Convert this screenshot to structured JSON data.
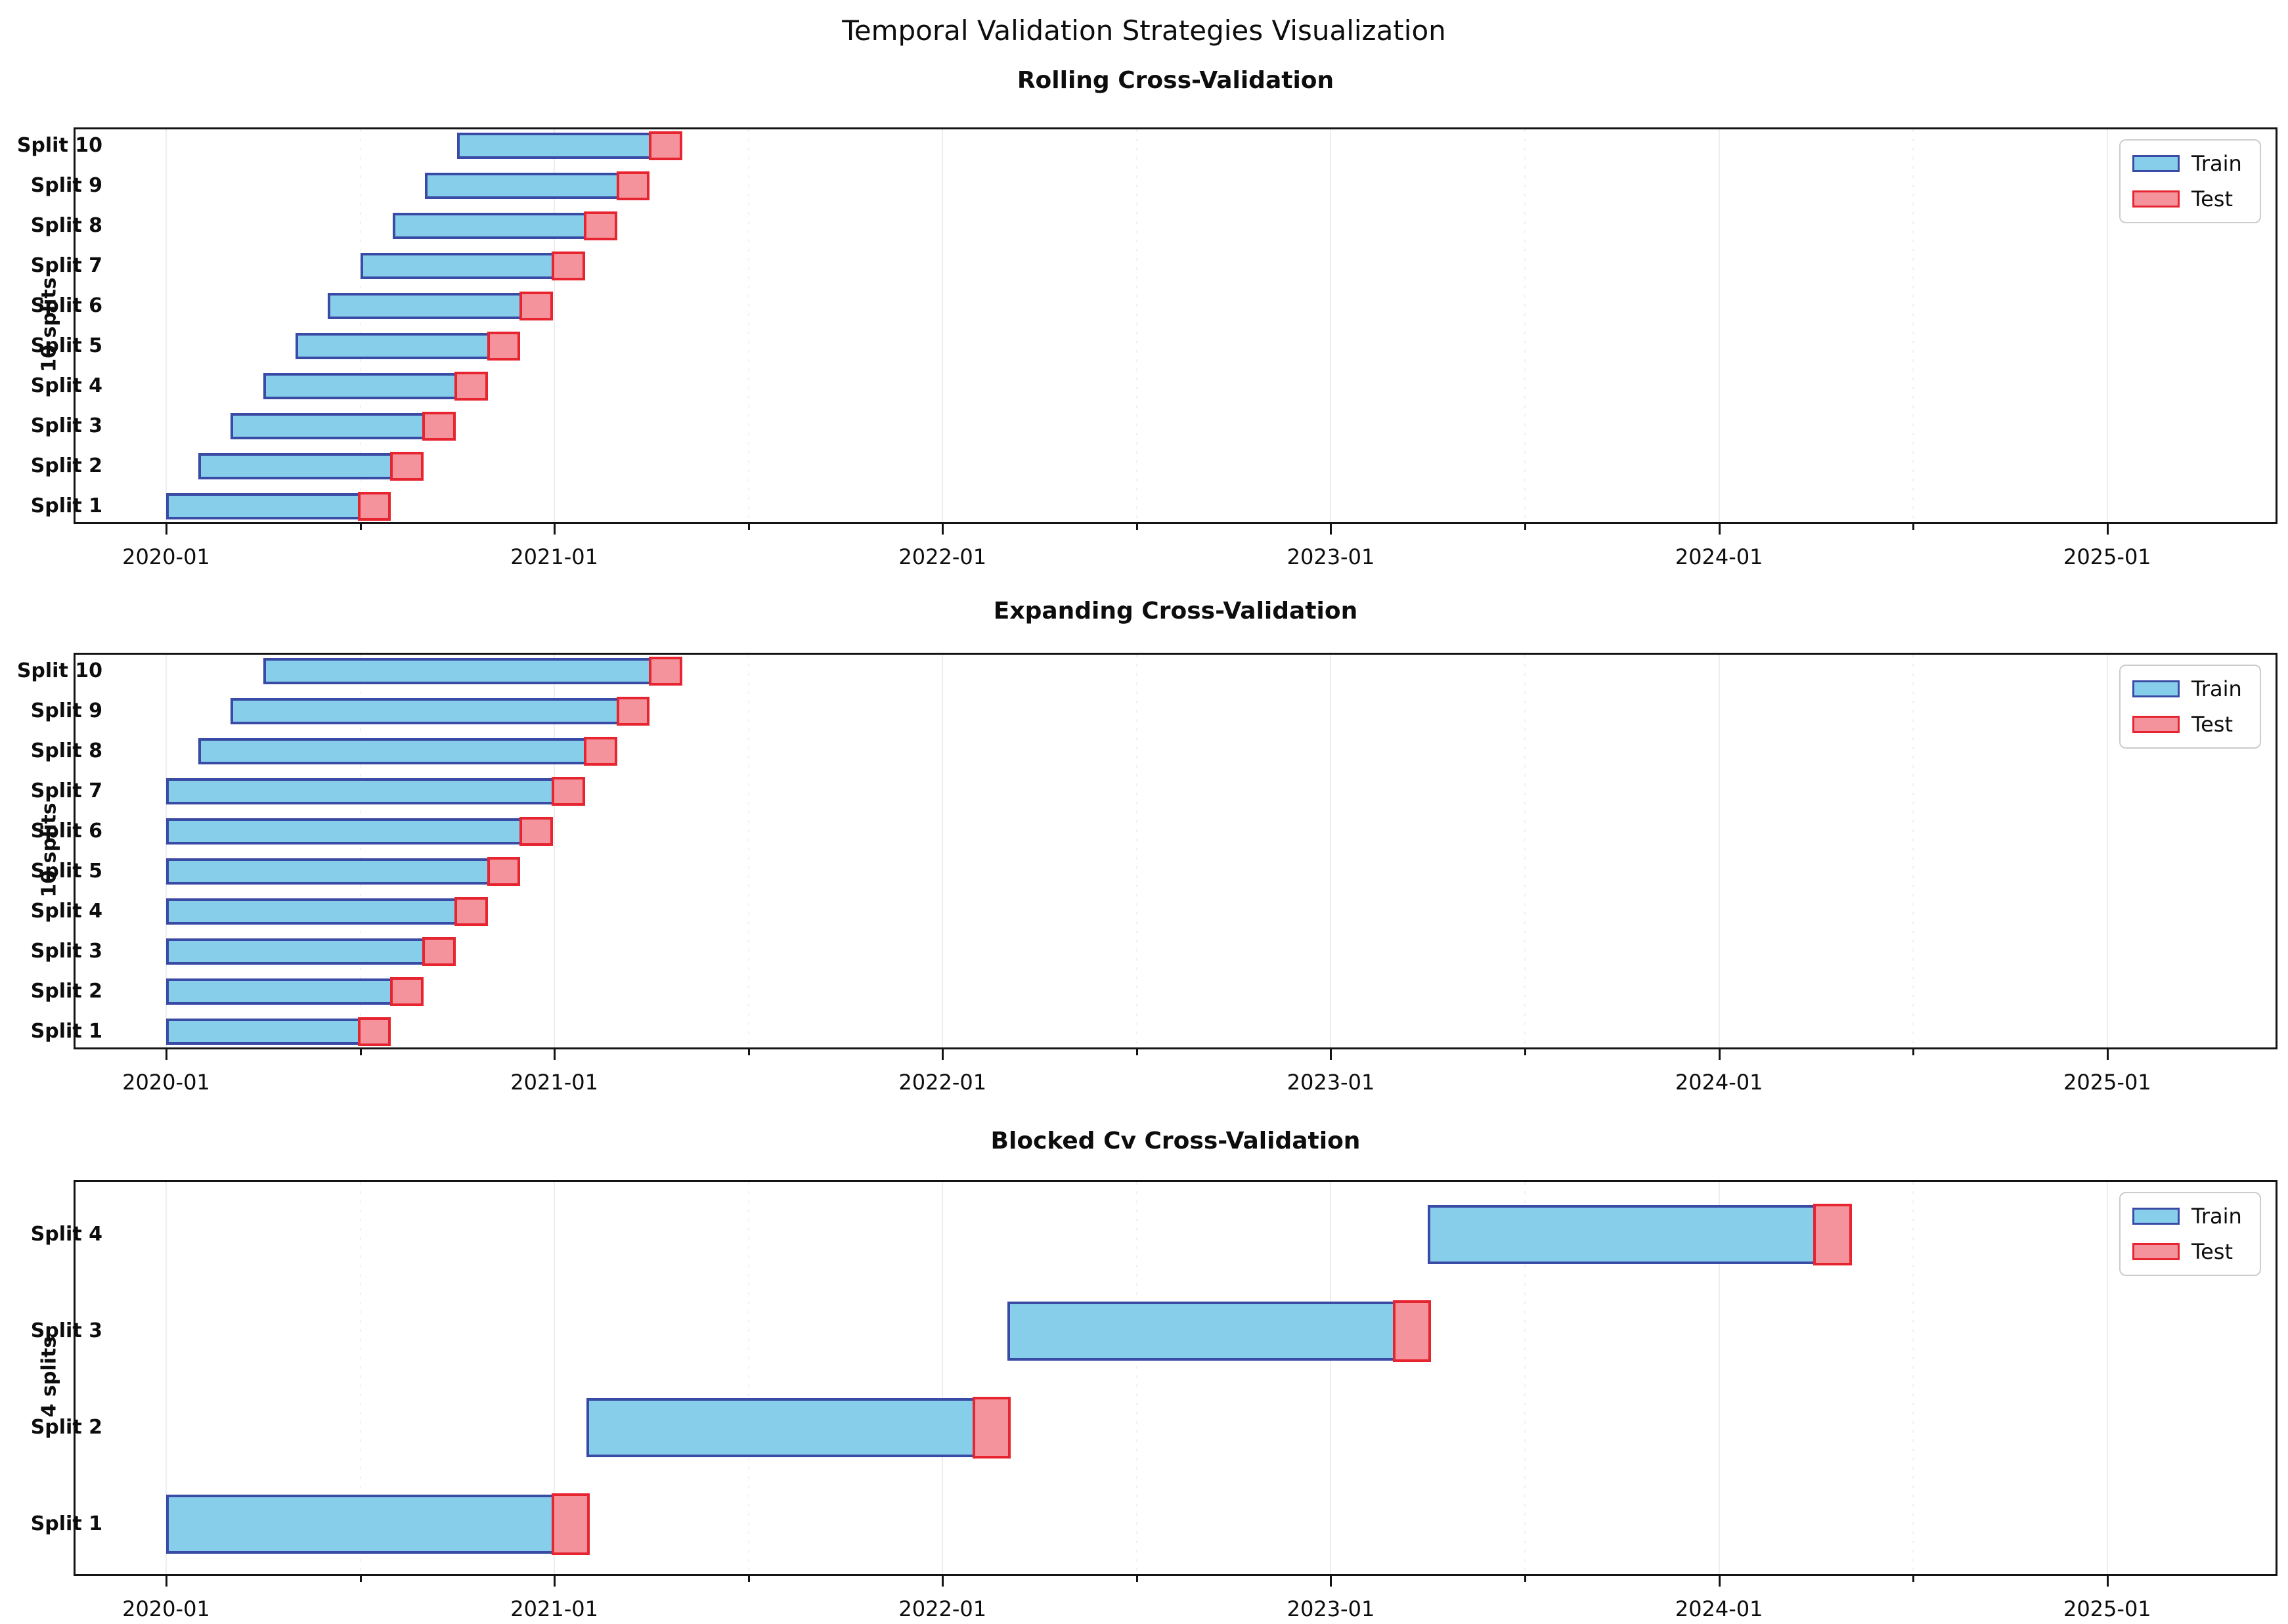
{
  "suptitle": "Temporal Validation Strategies Visualization",
  "colors": {
    "train_fill": "#87CEEB",
    "train_edge": "#3A4BA5",
    "test_fill": "#F4939B",
    "test_edge": "#E62531",
    "spine": "#141414"
  },
  "legend": {
    "items": [
      {
        "key": "train",
        "label": "Train"
      },
      {
        "key": "test",
        "label": "Test"
      }
    ],
    "position": "upper right"
  },
  "x_axis": {
    "range_months_since_2020_01": [
      -2.8,
      65.2
    ],
    "major_ticks": [
      {
        "m": 0,
        "label": "2020-01"
      },
      {
        "m": 12,
        "label": "2021-01"
      },
      {
        "m": 24,
        "label": "2022-01"
      },
      {
        "m": 36,
        "label": "2023-01"
      },
      {
        "m": 48,
        "label": "2024-01"
      },
      {
        "m": 60,
        "label": "2025-01"
      }
    ],
    "minor_tick_months": [
      6,
      18,
      30,
      42,
      54
    ],
    "grid": true
  },
  "chart_data": [
    {
      "type": "gantt",
      "title": "Rolling Cross-Validation",
      "ylabel": "10 splits",
      "legend": [
        "Train",
        "Test"
      ],
      "row_order_top_to_bottom": [
        "Split 10",
        "Split 9",
        "Split 8",
        "Split 7",
        "Split 6",
        "Split 5",
        "Split 4",
        "Split 3",
        "Split 2",
        "Split 1"
      ],
      "splits": [
        {
          "label": "Split 1",
          "train": [
            "2020-01",
            "2020-07"
          ],
          "test": [
            "2020-07",
            "2020-08"
          ],
          "train_m": [
            0,
            6
          ],
          "test_m": [
            6,
            6.95
          ]
        },
        {
          "label": "Split 2",
          "train": [
            "2020-02",
            "2020-08"
          ],
          "test": [
            "2020-08",
            "2020-09"
          ],
          "train_m": [
            1,
            7
          ],
          "test_m": [
            7,
            7.95
          ]
        },
        {
          "label": "Split 3",
          "train": [
            "2020-03",
            "2020-09"
          ],
          "test": [
            "2020-09",
            "2020-10"
          ],
          "train_m": [
            2,
            8
          ],
          "test_m": [
            8,
            8.95
          ]
        },
        {
          "label": "Split 4",
          "train": [
            "2020-04",
            "2020-10"
          ],
          "test": [
            "2020-10",
            "2020-11"
          ],
          "train_m": [
            3,
            9
          ],
          "test_m": [
            9,
            9.95
          ]
        },
        {
          "label": "Split 5",
          "train": [
            "2020-05",
            "2020-11"
          ],
          "test": [
            "2020-11",
            "2020-12"
          ],
          "train_m": [
            4,
            10
          ],
          "test_m": [
            10,
            10.95
          ]
        },
        {
          "label": "Split 6",
          "train": [
            "2020-06",
            "2020-12"
          ],
          "test": [
            "2020-12",
            "2021-01"
          ],
          "train_m": [
            5,
            11
          ],
          "test_m": [
            11,
            11.95
          ]
        },
        {
          "label": "Split 7",
          "train": [
            "2020-07",
            "2021-01"
          ],
          "test": [
            "2021-01",
            "2021-02"
          ],
          "train_m": [
            6,
            12
          ],
          "test_m": [
            12,
            12.95
          ]
        },
        {
          "label": "Split 8",
          "train": [
            "2020-08",
            "2021-02"
          ],
          "test": [
            "2021-02",
            "2021-03"
          ],
          "train_m": [
            7,
            13
          ],
          "test_m": [
            13,
            13.95
          ]
        },
        {
          "label": "Split 9",
          "train": [
            "2020-09",
            "2021-03"
          ],
          "test": [
            "2021-03",
            "2021-04"
          ],
          "train_m": [
            8,
            14
          ],
          "test_m": [
            14,
            14.95
          ]
        },
        {
          "label": "Split 10",
          "train": [
            "2020-10",
            "2021-04"
          ],
          "test": [
            "2021-04",
            "2021-05"
          ],
          "train_m": [
            9,
            15
          ],
          "test_m": [
            15,
            15.95
          ]
        }
      ]
    },
    {
      "type": "gantt",
      "title": "Expanding Cross-Validation",
      "ylabel": "10 splits",
      "legend": [
        "Train",
        "Test"
      ],
      "row_order_top_to_bottom": [
        "Split 10",
        "Split 9",
        "Split 8",
        "Split 7",
        "Split 6",
        "Split 5",
        "Split 4",
        "Split 3",
        "Split 2",
        "Split 1"
      ],
      "splits": [
        {
          "label": "Split 1",
          "train": [
            "2020-01",
            "2020-07"
          ],
          "test": [
            "2020-07",
            "2020-08"
          ],
          "train_m": [
            0,
            6
          ],
          "test_m": [
            6,
            6.95
          ]
        },
        {
          "label": "Split 2",
          "train": [
            "2020-01",
            "2020-08"
          ],
          "test": [
            "2020-08",
            "2020-09"
          ],
          "train_m": [
            0,
            7
          ],
          "test_m": [
            7,
            7.95
          ]
        },
        {
          "label": "Split 3",
          "train": [
            "2020-01",
            "2020-09"
          ],
          "test": [
            "2020-09",
            "2020-10"
          ],
          "train_m": [
            0,
            8
          ],
          "test_m": [
            8,
            8.95
          ]
        },
        {
          "label": "Split 4",
          "train": [
            "2020-01",
            "2020-10"
          ],
          "test": [
            "2020-10",
            "2020-11"
          ],
          "train_m": [
            0,
            9
          ],
          "test_m": [
            9,
            9.95
          ]
        },
        {
          "label": "Split 5",
          "train": [
            "2020-01",
            "2020-11"
          ],
          "test": [
            "2020-11",
            "2020-12"
          ],
          "train_m": [
            0,
            10
          ],
          "test_m": [
            10,
            10.95
          ]
        },
        {
          "label": "Split 6",
          "train": [
            "2020-01",
            "2020-12"
          ],
          "test": [
            "2020-12",
            "2021-01"
          ],
          "train_m": [
            0,
            11
          ],
          "test_m": [
            11,
            11.95
          ]
        },
        {
          "label": "Split 7",
          "train": [
            "2020-01",
            "2021-01"
          ],
          "test": [
            "2021-01",
            "2021-02"
          ],
          "train_m": [
            0,
            12
          ],
          "test_m": [
            12,
            12.95
          ]
        },
        {
          "label": "Split 8",
          "train": [
            "2020-02",
            "2021-02"
          ],
          "test": [
            "2021-02",
            "2021-03"
          ],
          "train_m": [
            1,
            13
          ],
          "test_m": [
            13,
            13.95
          ]
        },
        {
          "label": "Split 9",
          "train": [
            "2020-03",
            "2021-03"
          ],
          "test": [
            "2021-03",
            "2021-04"
          ],
          "train_m": [
            2,
            14
          ],
          "test_m": [
            14,
            14.95
          ]
        },
        {
          "label": "Split 10",
          "train": [
            "2020-04",
            "2021-04"
          ],
          "test": [
            "2021-04",
            "2021-05"
          ],
          "train_m": [
            3,
            15
          ],
          "test_m": [
            15,
            15.95
          ]
        }
      ]
    },
    {
      "type": "gantt",
      "title": "Blocked Cv Cross-Validation",
      "ylabel": "4 splits",
      "legend": [
        "Train",
        "Test"
      ],
      "row_order_top_to_bottom": [
        "Split 4",
        "Split 3",
        "Split 2",
        "Split 1"
      ],
      "splits": [
        {
          "label": "Split 1",
          "train": [
            "2020-01",
            "2021-01"
          ],
          "test": [
            "2021-01",
            "2021-02"
          ],
          "train_m": [
            0,
            12
          ],
          "test_m": [
            12,
            13.1
          ]
        },
        {
          "label": "Split 2",
          "train": [
            "2021-02",
            "2022-02"
          ],
          "test": [
            "2022-02",
            "2022-03"
          ],
          "train_m": [
            13,
            25
          ],
          "test_m": [
            25,
            26.1
          ]
        },
        {
          "label": "Split 3",
          "train": [
            "2022-03",
            "2023-03"
          ],
          "test": [
            "2023-03",
            "2023-04"
          ],
          "train_m": [
            26,
            38
          ],
          "test_m": [
            38,
            39.1
          ]
        },
        {
          "label": "Split 4",
          "train": [
            "2023-04",
            "2024-04"
          ],
          "test": [
            "2024-04",
            "2024-05"
          ],
          "train_m": [
            39,
            51
          ],
          "test_m": [
            51,
            52.1
          ]
        }
      ]
    }
  ]
}
